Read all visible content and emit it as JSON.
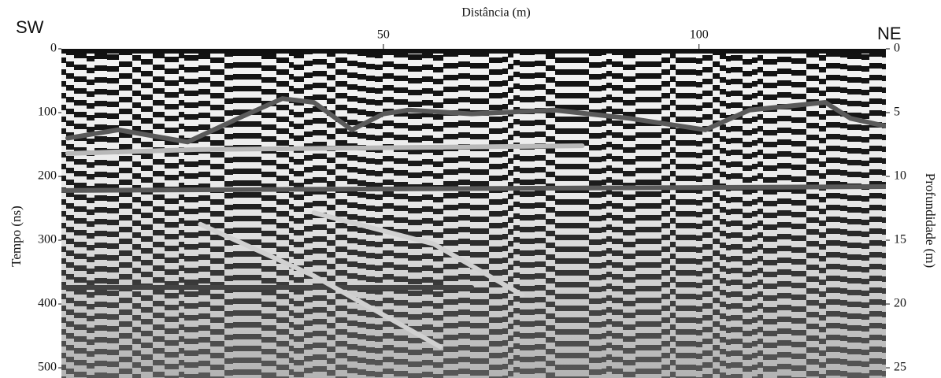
{
  "chart_data": {
    "type": "line",
    "xlabel": "Distância (m)",
    "ylabel": "Tempo (ns)",
    "y2label": "Profundidade (m)",
    "annotations": [
      "SW",
      "NE"
    ],
    "xlim": [
      -1,
      129.6
    ],
    "xticks": [
      50,
      100
    ],
    "ylim": [
      0,
      516
    ],
    "yticks": [
      0,
      100,
      200,
      300,
      400,
      500
    ],
    "y2lim": [
      0,
      25.8
    ],
    "y2ticks": [
      0,
      5,
      10,
      15,
      20,
      25
    ],
    "series": [
      {
        "color": "#5a5a5a",
        "x": [
          0,
          8,
          19,
          27,
          34,
          39,
          45,
          50,
          54,
          64,
          77,
          89,
          101,
          108,
          120,
          124,
          129.5
        ],
        "values": [
          140,
          127,
          146,
          109,
          78,
          84,
          127,
          102,
          96,
          102,
          96,
          109,
          127,
          96,
          84,
          109,
          121
        ]
      },
      {
        "color": "#b8b8b8",
        "x": [
          0,
          20,
          81.5
        ],
        "values": [
          164,
          158,
          152
        ]
      },
      {
        "color": "#5a5a5a",
        "x": [
          -1,
          129.5
        ],
        "values": [
          222,
          216
        ]
      },
      {
        "color": "#444444",
        "x": [
          -1,
          64
        ],
        "values": [
          374,
          374
        ]
      },
      {
        "color": "#d0d0d0",
        "x": [
          21,
          39,
          59
        ],
        "values": [
          275,
          356,
          467
        ]
      },
      {
        "color": "#d0d0d0",
        "x": [
          39,
          58,
          72
        ],
        "values": [
          257,
          306,
          386
        ]
      }
    ]
  }
}
